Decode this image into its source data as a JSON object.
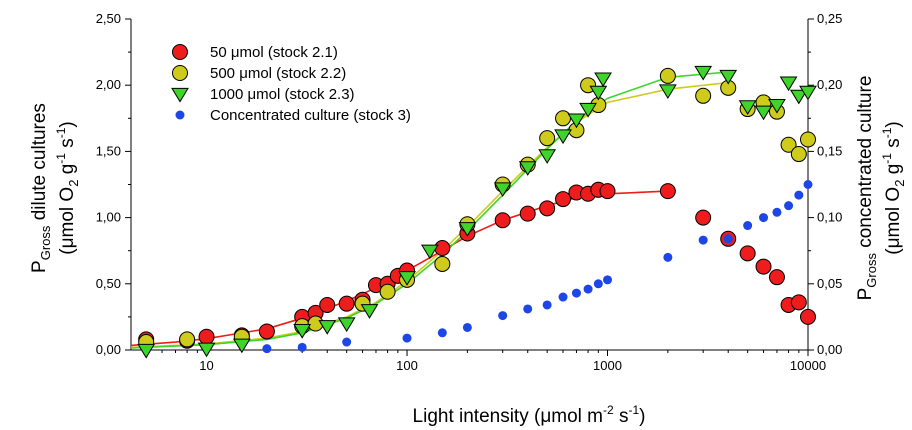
{
  "chart_data": {
    "type": "scatter",
    "x_scale": "log",
    "xlim": [
      4.2,
      10000
    ],
    "ylim_left": [
      0,
      2.5
    ],
    "ylim_right": [
      0,
      0.25
    ],
    "x_ticks": [
      10,
      100,
      1000,
      10000
    ],
    "x_tick_labels": [
      "10",
      "100",
      "1000",
      "10000"
    ],
    "y_left_ticks": [
      0,
      0.5,
      1.0,
      1.5,
      2.0,
      2.5
    ],
    "y_left_tick_labels": [
      "0,00",
      "0,50",
      "1,00",
      "1,50",
      "2,00",
      "2,50"
    ],
    "y_right_ticks": [
      0,
      0.05,
      0.1,
      0.15,
      0.2,
      0.25
    ],
    "y_right_tick_labels": [
      "0,00",
      "0,05",
      "0,10",
      "0,15",
      "0,20",
      "0,25"
    ],
    "xlabel": {
      "pre": "Light intensity (",
      "mu": "μmol m",
      "sup1": "-2",
      "mid": " s",
      "sup2": "-1",
      "post": ")"
    },
    "ylabel_left": {
      "line1_p": "P",
      "line1_sub": "Gross",
      "line1_rest": " dilute cultures",
      "line2_pre": "(μmol O",
      "line2_sub": "2",
      "line2_mid": " g",
      "line2_sup1": "-1",
      "line2_mid2": " s",
      "line2_sup2": "-1",
      "line2_post": ")"
    },
    "ylabel_right": {
      "line1_p": "P",
      "line1_sub": "Gross",
      "line1_rest": " concentrated culture",
      "line2_pre": "(μmol O",
      "line2_sub": "2",
      "line2_mid": " g",
      "line2_sup1": "-1",
      "line2_mid2": " s",
      "line2_sup2": "-1",
      "line2_post": ")"
    },
    "legend_position": "top-left",
    "series": [
      {
        "name": "50 μmol (stock 2.1)",
        "marker": "circle",
        "color": "#ee1c1c",
        "axis": "left",
        "points": [
          [
            5,
            0.08
          ],
          [
            8,
            0.07
          ],
          [
            10,
            0.1
          ],
          [
            15,
            0.11
          ],
          [
            20,
            0.14
          ],
          [
            30,
            0.25
          ],
          [
            35,
            0.28
          ],
          [
            40,
            0.34
          ],
          [
            50,
            0.35
          ],
          [
            60,
            0.38
          ],
          [
            70,
            0.49
          ],
          [
            80,
            0.5
          ],
          [
            90,
            0.56
          ],
          [
            100,
            0.6
          ],
          [
            150,
            0.77
          ],
          [
            200,
            0.88
          ],
          [
            300,
            0.98
          ],
          [
            400,
            1.03
          ],
          [
            500,
            1.07
          ],
          [
            600,
            1.14
          ],
          [
            700,
            1.19
          ],
          [
            800,
            1.18
          ],
          [
            900,
            1.21
          ],
          [
            1000,
            1.2
          ],
          [
            2000,
            1.2
          ],
          [
            3000,
            1.0
          ],
          [
            4000,
            0.84
          ],
          [
            5000,
            0.73
          ],
          [
            6000,
            0.63
          ],
          [
            7000,
            0.55
          ],
          [
            8000,
            0.34
          ],
          [
            9000,
            0.36
          ],
          [
            10000,
            0.25
          ]
        ],
        "fit": [
          [
            4.2,
            0.035
          ],
          [
            7,
            0.06
          ],
          [
            10,
            0.085
          ],
          [
            20,
            0.16
          ],
          [
            30,
            0.24
          ],
          [
            50,
            0.37
          ],
          [
            70,
            0.47
          ],
          [
            100,
            0.6
          ],
          [
            150,
            0.75
          ],
          [
            200,
            0.86
          ],
          [
            300,
            0.98
          ],
          [
            500,
            1.09
          ],
          [
            700,
            1.15
          ],
          [
            1000,
            1.18
          ],
          [
            2000,
            1.2
          ]
        ]
      },
      {
        "name": "500 μmol (stock 2.2)",
        "marker": "circle",
        "color": "#cfcb1c",
        "axis": "left",
        "points": [
          [
            5,
            0.06
          ],
          [
            8,
            0.08
          ],
          [
            15,
            0.1
          ],
          [
            30,
            0.18
          ],
          [
            35,
            0.2
          ],
          [
            60,
            0.35
          ],
          [
            80,
            0.44
          ],
          [
            100,
            0.53
          ],
          [
            150,
            0.65
          ],
          [
            200,
            0.95
          ],
          [
            300,
            1.25
          ],
          [
            400,
            1.4
          ],
          [
            500,
            1.6
          ],
          [
            600,
            1.75
          ],
          [
            700,
            1.66
          ],
          [
            800,
            2.0
          ],
          [
            900,
            1.85
          ],
          [
            2000,
            2.07
          ],
          [
            3000,
            1.92
          ],
          [
            4000,
            1.98
          ],
          [
            5000,
            1.82
          ],
          [
            6000,
            1.87
          ],
          [
            7000,
            1.8
          ],
          [
            8000,
            1.55
          ],
          [
            9000,
            1.48
          ],
          [
            10000,
            1.59
          ]
        ],
        "fit": [
          [
            4.2,
            0.02
          ],
          [
            10,
            0.045
          ],
          [
            20,
            0.09
          ],
          [
            30,
            0.14
          ],
          [
            50,
            0.25
          ],
          [
            70,
            0.36
          ],
          [
            100,
            0.52
          ],
          [
            150,
            0.75
          ],
          [
            200,
            0.93
          ],
          [
            300,
            1.2
          ],
          [
            500,
            1.53
          ],
          [
            700,
            1.72
          ],
          [
            1000,
            1.87
          ],
          [
            2000,
            1.97
          ],
          [
            4000,
            2.02
          ]
        ]
      },
      {
        "name": "1000 μmol (stock 2.3)",
        "marker": "triangle-down",
        "color": "#3ed42a",
        "axis": "left",
        "points": [
          [
            5,
            0.0
          ],
          [
            10,
            0.01
          ],
          [
            15,
            0.04
          ],
          [
            30,
            0.15
          ],
          [
            40,
            0.18
          ],
          [
            50,
            0.2
          ],
          [
            65,
            0.3
          ],
          [
            100,
            0.55
          ],
          [
            130,
            0.75
          ],
          [
            200,
            0.92
          ],
          [
            300,
            1.22
          ],
          [
            400,
            1.38
          ],
          [
            500,
            1.47
          ],
          [
            600,
            1.62
          ],
          [
            700,
            1.74
          ],
          [
            800,
            1.82
          ],
          [
            900,
            1.95
          ],
          [
            950,
            2.05
          ],
          [
            2000,
            1.96
          ],
          [
            3000,
            2.1
          ],
          [
            4000,
            2.07
          ],
          [
            5000,
            1.84
          ],
          [
            6000,
            1.8
          ],
          [
            7000,
            1.85
          ],
          [
            8000,
            2.02
          ],
          [
            9000,
            1.92
          ],
          [
            10000,
            1.95
          ]
        ],
        "fit": [
          [
            4.2,
            0.015
          ],
          [
            10,
            0.04
          ],
          [
            20,
            0.08
          ],
          [
            30,
            0.13
          ],
          [
            50,
            0.24
          ],
          [
            70,
            0.35
          ],
          [
            100,
            0.5
          ],
          [
            150,
            0.72
          ],
          [
            200,
            0.9
          ],
          [
            300,
            1.17
          ],
          [
            500,
            1.52
          ],
          [
            700,
            1.73
          ],
          [
            1000,
            1.9
          ],
          [
            2000,
            2.06
          ],
          [
            4000,
            2.1
          ]
        ]
      },
      {
        "name": "Concentrated culture (stock 3)",
        "marker": "small-circle",
        "color": "#1c46e6",
        "axis": "right",
        "points": [
          [
            20,
            0.001
          ],
          [
            30,
            0.002
          ],
          [
            50,
            0.006
          ],
          [
            100,
            0.009
          ],
          [
            150,
            0.013
          ],
          [
            200,
            0.017
          ],
          [
            300,
            0.026
          ],
          [
            400,
            0.031
          ],
          [
            500,
            0.034
          ],
          [
            600,
            0.04
          ],
          [
            700,
            0.043
          ],
          [
            800,
            0.046
          ],
          [
            900,
            0.05
          ],
          [
            1000,
            0.053
          ],
          [
            2000,
            0.07
          ],
          [
            3000,
            0.083
          ],
          [
            4000,
            0.084
          ],
          [
            5000,
            0.094
          ],
          [
            6000,
            0.1
          ],
          [
            7000,
            0.104
          ],
          [
            8000,
            0.109
          ],
          [
            9000,
            0.117
          ],
          [
            10000,
            0.125
          ]
        ]
      }
    ]
  }
}
